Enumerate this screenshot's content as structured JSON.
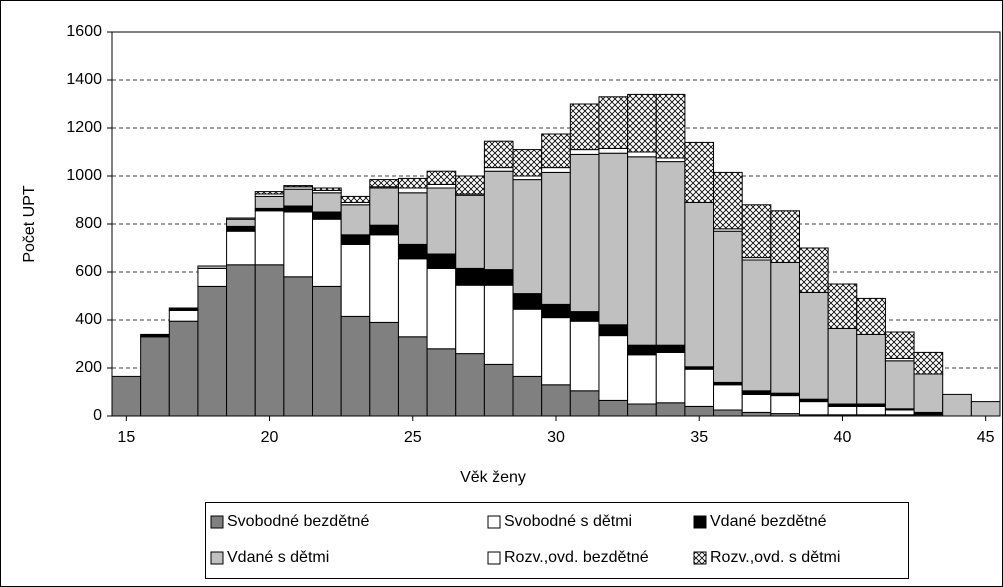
{
  "chart_data": {
    "type": "stacked-bar",
    "x_label": "Věk ženy",
    "y_label": "Počet UPT",
    "categories": [
      "15",
      null,
      null,
      null,
      null,
      "20",
      null,
      null,
      null,
      null,
      "25",
      null,
      null,
      null,
      null,
      "30",
      null,
      null,
      null,
      null,
      "35",
      null,
      null,
      null,
      null,
      "40",
      null,
      null,
      null,
      null,
      "45"
    ],
    "ylim": [
      0,
      1600
    ],
    "yticks": [
      0,
      200,
      400,
      600,
      800,
      1000,
      1200,
      1400,
      1600
    ],
    "grid": true,
    "series": [
      {
        "name": "Svobodné bezdětné",
        "color": "#808080",
        "values": [
          165,
          330,
          395,
          540,
          630,
          630,
          580,
          540,
          415,
          390,
          330,
          280,
          260,
          215,
          165,
          130,
          105,
          65,
          50,
          55,
          40,
          25,
          15,
          10,
          5,
          5,
          5,
          5,
          0,
          0,
          0
        ]
      },
      {
        "name": "Svobodné s dětmi",
        "color": "#ffffff",
        "values": [
          0,
          0,
          45,
          75,
          140,
          225,
          270,
          280,
          300,
          365,
          325,
          335,
          285,
          330,
          280,
          280,
          290,
          270,
          205,
          210,
          155,
          105,
          75,
          75,
          55,
          35,
          35,
          20,
          5,
          0,
          0
        ]
      },
      {
        "name": "Vdané bezdětné",
        "color": "#000000",
        "values": [
          0,
          10,
          10,
          0,
          20,
          10,
          25,
          30,
          40,
          40,
          60,
          60,
          70,
          65,
          65,
          55,
          40,
          45,
          40,
          30,
          10,
          10,
          15,
          10,
          10,
          10,
          10,
          5,
          10,
          0,
          0
        ]
      },
      {
        "name": "Vdané s dětmi",
        "color": "#c0c0c0",
        "values": [
          0,
          0,
          0,
          10,
          30,
          50,
          70,
          80,
          125,
          155,
          215,
          275,
          305,
          410,
          475,
          550,
          655,
          715,
          785,
          765,
          685,
          630,
          545,
          545,
          445,
          315,
          290,
          200,
          160,
          90,
          60
        ]
      },
      {
        "name": "Rozv.,ovd. bezdětné",
        "color": "#ffffff",
        "values": [
          0,
          0,
          0,
          0,
          5,
          10,
          10,
          10,
          10,
          5,
          20,
          15,
          5,
          15,
          15,
          20,
          20,
          20,
          20,
          15,
          0,
          10,
          10,
          0,
          0,
          0,
          0,
          10,
          0,
          0,
          0
        ]
      },
      {
        "name": "Rozv.,ovd. s dětmi",
        "color": "#ffffff",
        "hatch": true,
        "values": [
          0,
          0,
          0,
          0,
          0,
          10,
          5,
          10,
          25,
          30,
          40,
          55,
          75,
          110,
          110,
          140,
          190,
          215,
          240,
          265,
          250,
          235,
          220,
          215,
          185,
          185,
          150,
          110,
          90,
          0,
          0
        ]
      }
    ]
  }
}
